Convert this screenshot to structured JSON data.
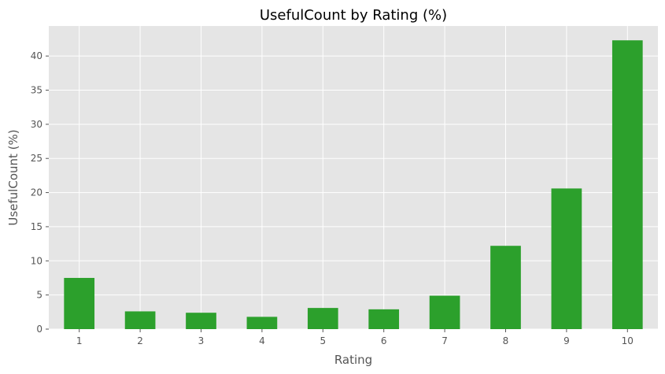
{
  "colors": {
    "bar": "#2ca02c",
    "plot_background": "#e5e5e5",
    "grid": "#ffffff"
  },
  "chart_data": {
    "type": "bar",
    "title": "UsefulCount by Rating (%)",
    "xlabel": "Rating",
    "ylabel": "UsefulCount (%)",
    "categories": [
      "1",
      "2",
      "3",
      "4",
      "5",
      "6",
      "7",
      "8",
      "9",
      "10"
    ],
    "values": [
      7.5,
      2.6,
      2.4,
      1.8,
      3.1,
      2.9,
      4.9,
      12.2,
      20.6,
      42.3
    ],
    "ylim": [
      0,
      44.4
    ],
    "yticks": [
      0,
      5,
      10,
      15,
      20,
      25,
      30,
      35,
      40
    ],
    "grid": true,
    "legend": "none"
  }
}
